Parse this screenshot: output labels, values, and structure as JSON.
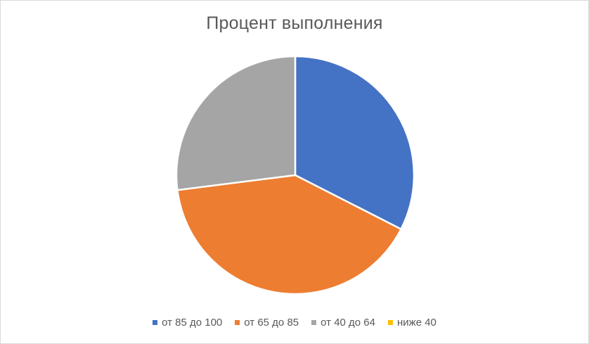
{
  "chart_data": {
    "type": "pie",
    "title": "Процент выполнения",
    "categories": [
      "от 85 до 100",
      "от 65 до 85",
      "от 40 до 64",
      "ниже 40"
    ],
    "values": [
      32.5,
      40.5,
      27,
      0
    ],
    "colors": [
      "#4472c4",
      "#ed7d31",
      "#a5a5a5",
      "#ffc000"
    ],
    "legend_position": "bottom",
    "start_angle_deg": 0,
    "direction": "clockwise"
  }
}
